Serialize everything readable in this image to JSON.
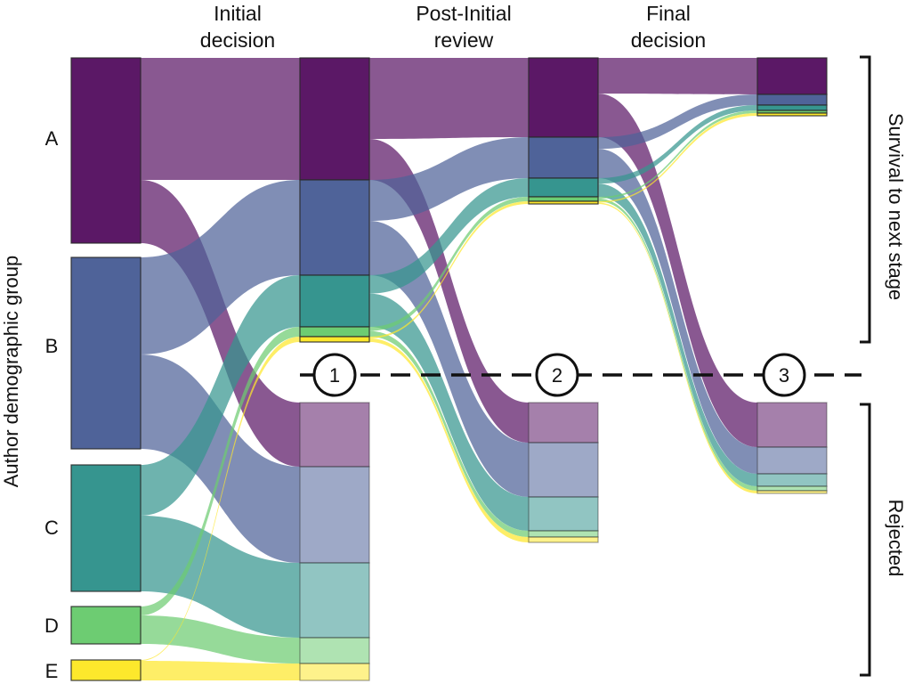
{
  "axis_label": "Author demographic group",
  "stages": [
    {
      "line1": "Initial",
      "line2": "decision"
    },
    {
      "line1": "Post-Initial",
      "line2": "review"
    },
    {
      "line1": "Final",
      "line2": "decision"
    }
  ],
  "groups": [
    "A",
    "B",
    "C",
    "D",
    "E"
  ],
  "checkpoints": [
    "1",
    "2",
    "3"
  ],
  "right_labels": {
    "survival": "Survival to next stage",
    "rejected": "Rejected"
  },
  "colors": {
    "A": "#5b1866",
    "B": "#4f6399",
    "C": "#36958f",
    "D": "#6dcc72",
    "E": "#fde82c"
  },
  "diagram": {
    "type": "sankey",
    "columns": [
      "Author demographic group",
      "Initial decision",
      "Post-Initial review",
      "Final decision"
    ]
  }
}
